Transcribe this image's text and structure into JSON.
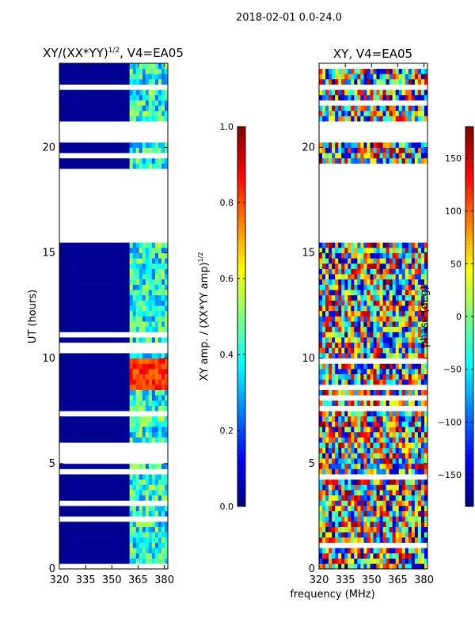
{
  "figure_title": "2018-02-01 0.0-24.0",
  "colors": {
    "jet": [
      "#00007f",
      "#0000ff",
      "#007fff",
      "#00ffff",
      "#7fff7f",
      "#ffff00",
      "#ff7f00",
      "#ff0000",
      "#7f0000"
    ],
    "blank": "#ffffff",
    "frame": "#000000"
  },
  "chart_data": [
    {
      "type": "heatmap",
      "title_main": "XY/(XX*YY)",
      "title_exp": "1/2",
      "title_tail": ", V4=EA05",
      "xlabel": "",
      "ylabel": "UT (hours)",
      "xlim": [
        320,
        382
      ],
      "ylim": [
        0,
        24
      ],
      "xticks": [
        320,
        335,
        350,
        365,
        380
      ],
      "yticks": [
        0,
        5,
        10,
        15,
        20
      ],
      "xtick_labels": [
        "320",
        "335",
        "350",
        "365",
        "380"
      ],
      "ytick_labels": [
        "0",
        "5",
        "10",
        "15",
        "20"
      ],
      "flagged_ut_ranges": [
        [
          15.5,
          19.0
        ],
        [
          20.3,
          21.3
        ],
        [
          17.3,
          17.7
        ],
        [
          22.7,
          23.0
        ]
      ],
      "bright_band_mhz": [
        360,
        382
      ],
      "peak_region": {
        "ut": [
          8.5,
          9.9
        ],
        "freq_mhz": [
          360,
          382
        ],
        "value": 0.9
      },
      "background_value": 0.02,
      "band_value": 0.4
    },
    {
      "type": "colorbar",
      "label_main": "XY amp. / (XX*YY amp)",
      "label_exp": "1/2",
      "range": [
        0.0,
        1.0
      ],
      "ticks": [
        0.0,
        0.2,
        0.4,
        0.6,
        0.8,
        1.0
      ],
      "tick_labels": [
        "0.0",
        "0.2",
        "0.4",
        "0.6",
        "0.8",
        "1.0"
      ]
    },
    {
      "type": "heatmap",
      "title": "XY, V4=EA05",
      "xlabel": "frequency (MHz)",
      "ylabel": "",
      "xlim": [
        320,
        382
      ],
      "ylim": [
        0,
        24
      ],
      "xticks": [
        320,
        335,
        350,
        365,
        380
      ],
      "yticks": [
        0,
        5,
        10,
        15,
        20
      ],
      "xtick_labels": [
        "320",
        "335",
        "350",
        "365",
        "380"
      ],
      "ytick_labels": [
        "0",
        "5",
        "10",
        "15",
        "20"
      ],
      "flagged_ut_ranges": [
        [
          15.5,
          19.0
        ],
        [
          20.3,
          21.3
        ],
        [
          17.3,
          17.7
        ],
        [
          22.7,
          23.0
        ]
      ],
      "value_range_deg": [
        -180,
        180
      ]
    },
    {
      "type": "colorbar",
      "label": "phase (deg)",
      "range": [
        -180,
        180
      ],
      "ticks": [
        -150,
        -100,
        -50,
        0,
        50,
        100,
        150
      ],
      "tick_labels": [
        "−150",
        "−100",
        "−50",
        "0",
        "50",
        "100",
        "150"
      ]
    }
  ]
}
